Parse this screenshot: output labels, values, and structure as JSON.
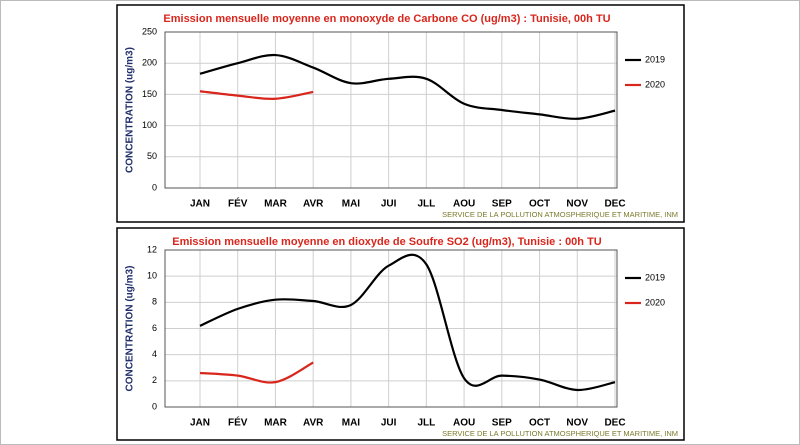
{
  "chart_data": [
    {
      "type": "line",
      "title": "Emission mensuelle moyenne en monoxyde de Carbone CO (ug/m3) : Tunisie, 00h TU",
      "y_label": "CONCENTRATION (ug/m3)",
      "source": "SERVICE DE LA POLLUTION ATMOSPHERIQUE ET MARITIME, INM",
      "categories": [
        "JAN",
        "FÉV",
        "MAR",
        "AVR",
        "MAI",
        "JUI",
        "JLL",
        "AOU",
        "SEP",
        "OCT",
        "NOV",
        "DEC"
      ],
      "series": [
        {
          "name": "2019",
          "color": "#000000",
          "values": [
            183,
            200,
            213,
            193,
            168,
            175,
            175,
            135,
            125,
            118,
            111,
            124
          ]
        },
        {
          "name": "2020",
          "color": "#d9261c",
          "values": [
            155,
            148,
            143,
            154,
            null,
            null,
            null,
            null,
            null,
            null,
            null,
            null
          ]
        }
      ],
      "ylim": [
        0,
        250
      ],
      "yticks": [
        0,
        50,
        100,
        150,
        200,
        250
      ],
      "grid": true,
      "legend": "right"
    },
    {
      "type": "line",
      "title": "Emission mensuelle moyenne en dioxyde de Soufre SO2 (ug/m3), Tunisie : 00h TU",
      "y_label": "CONCENTRATION (ug/m3)",
      "source": "SERVICE DE LA POLLUTION ATMOSPHERIQUE ET MARITIME, INM",
      "categories": [
        "JAN",
        "FÉV",
        "MAR",
        "AVR",
        "MAI",
        "JUI",
        "JLL",
        "AOU",
        "SEP",
        "OCT",
        "NOV",
        "DEC"
      ],
      "series": [
        {
          "name": "2019",
          "color": "#000000",
          "values": [
            6.2,
            7.5,
            8.2,
            8.1,
            7.8,
            10.8,
            10.9,
            2.2,
            2.4,
            2.1,
            1.3,
            1.9
          ]
        },
        {
          "name": "2020",
          "color": "#d9261c",
          "values": [
            2.6,
            2.4,
            1.9,
            3.4,
            null,
            null,
            null,
            null,
            null,
            null,
            null,
            null
          ]
        }
      ],
      "ylim": [
        0,
        12
      ],
      "yticks": [
        0,
        2,
        4,
        6,
        8,
        10,
        12
      ],
      "grid": true,
      "legend": "right"
    }
  ]
}
